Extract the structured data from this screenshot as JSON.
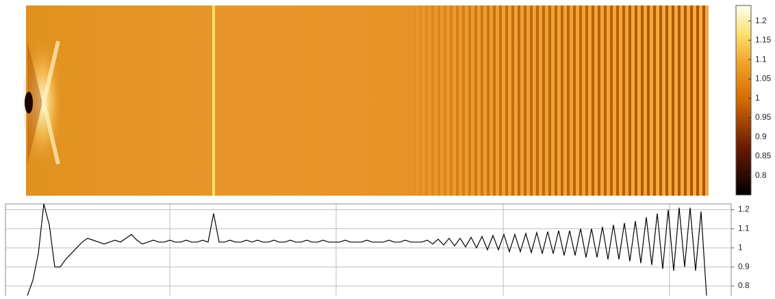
{
  "chart_data": [
    {
      "type": "heatmap",
      "clim": [
        0.75,
        1.24
      ],
      "colorbar_ticks": [
        0.8,
        0.85,
        0.9,
        0.95,
        1,
        1.05,
        1.1,
        1.15,
        1.2
      ]
    },
    {
      "type": "line",
      "color": "#000000",
      "ylim": [
        0.75,
        1.23
      ],
      "yticks": [
        0.8,
        0.9,
        1,
        1.1,
        1.2
      ],
      "grid": true,
      "values": [
        0.75,
        0.83,
        0.97,
        1.23,
        1.12,
        0.9,
        0.9,
        0.94,
        0.97,
        1.0,
        1.03,
        1.05,
        1.04,
        1.03,
        1.02,
        1.03,
        1.04,
        1.03,
        1.05,
        1.07,
        1.04,
        1.02,
        1.03,
        1.04,
        1.03,
        1.03,
        1.04,
        1.03,
        1.03,
        1.04,
        1.03,
        1.03,
        1.04,
        1.03,
        1.18,
        1.03,
        1.03,
        1.04,
        1.03,
        1.03,
        1.04,
        1.03,
        1.04,
        1.03,
        1.03,
        1.04,
        1.03,
        1.03,
        1.04,
        1.03,
        1.03,
        1.04,
        1.03,
        1.03,
        1.04,
        1.03,
        1.03,
        1.03,
        1.04,
        1.03,
        1.03,
        1.03,
        1.04,
        1.03,
        1.03,
        1.03,
        1.04,
        1.03,
        1.03,
        1.04,
        1.03,
        1.03,
        1.03,
        1.04,
        1.02,
        1.045,
        1.015,
        1.05,
        1.01,
        1.05,
        1.005,
        1.055,
        1.0,
        1.06,
        0.99,
        1.065,
        0.99,
        1.07,
        0.98,
        1.07,
        0.98,
        1.075,
        0.975,
        1.08,
        0.97,
        1.085,
        0.97,
        1.09,
        0.96,
        1.09,
        0.96,
        1.1,
        0.95,
        1.1,
        0.95,
        1.11,
        0.94,
        1.12,
        0.94,
        1.13,
        0.93,
        1.14,
        0.92,
        1.16,
        0.91,
        1.18,
        0.89,
        1.2,
        0.88,
        1.21,
        0.9,
        1.21,
        0.88,
        1.19,
        0.75
      ]
    }
  ]
}
